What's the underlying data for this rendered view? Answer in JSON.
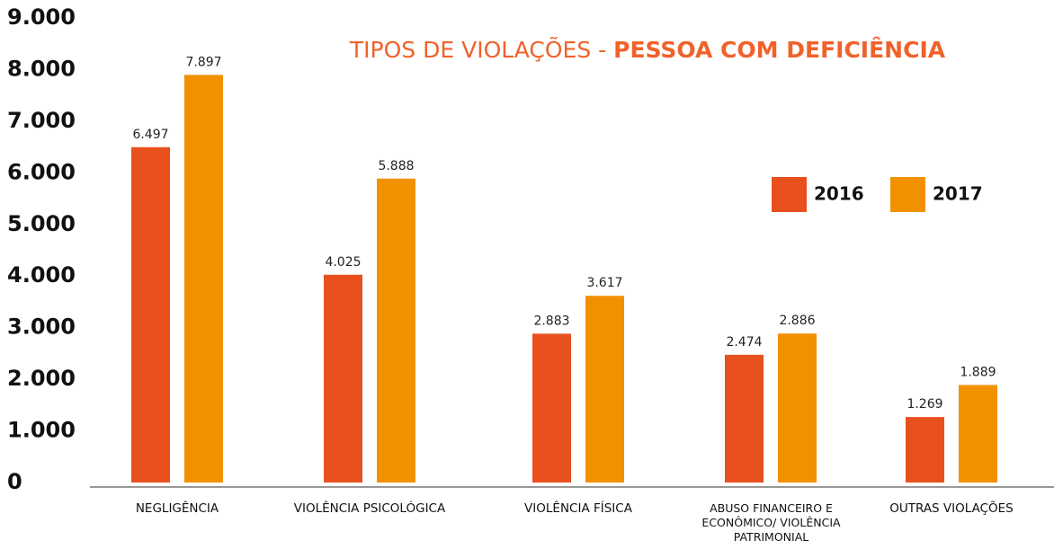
{
  "chart_data": {
    "type": "bar",
    "title": {
      "text": "TIPOS DE VIOLAÇÕES -",
      "highlight": "PESSOA COM DEFICIÊNCIA"
    },
    "categories": [
      "NEGLIGÊNCIA",
      "VIOLÊNCIA PSICOLÓGICA",
      "VIOLÊNCIA FÍSICA",
      "ABUSO FINANCEIRO E ECONÔMICO/ VIOLÊNCIA PATRIMONIAL",
      "OUTRAS VIOLAÇÕES"
    ],
    "series": [
      {
        "name": "2016",
        "color": "#e8501e",
        "values": [
          6497,
          4025,
          2883,
          2474,
          1269
        ],
        "value_labels": [
          "6.497",
          "4.025",
          "2.883",
          "2.474",
          "1.269"
        ]
      },
      {
        "name": "2017",
        "color": "#f19100",
        "values": [
          7897,
          5888,
          3617,
          2886,
          1889
        ],
        "value_labels": [
          "7.897",
          "5.888",
          "3.617",
          "2.886",
          "1.889"
        ]
      }
    ],
    "ylim": [
      0,
      9000
    ],
    "yticks": [
      0,
      {
        "value": 1000,
        "label": "1.000"
      },
      {
        "value": 2000,
        "label": "2.000"
      },
      {
        "value": 3000,
        "label": "3.000"
      },
      {
        "value": 4000,
        "label": "4.000"
      },
      {
        "value": 5000,
        "label": "5.000"
      },
      {
        "value": 6000,
        "label": "6.000"
      },
      {
        "value": 7000,
        "label": "7.000"
      },
      {
        "value": 8000,
        "label": "8.000"
      },
      {
        "value": 9000,
        "label": "9.000"
      }
    ],
    "grid": false,
    "legend": "upper right"
  }
}
